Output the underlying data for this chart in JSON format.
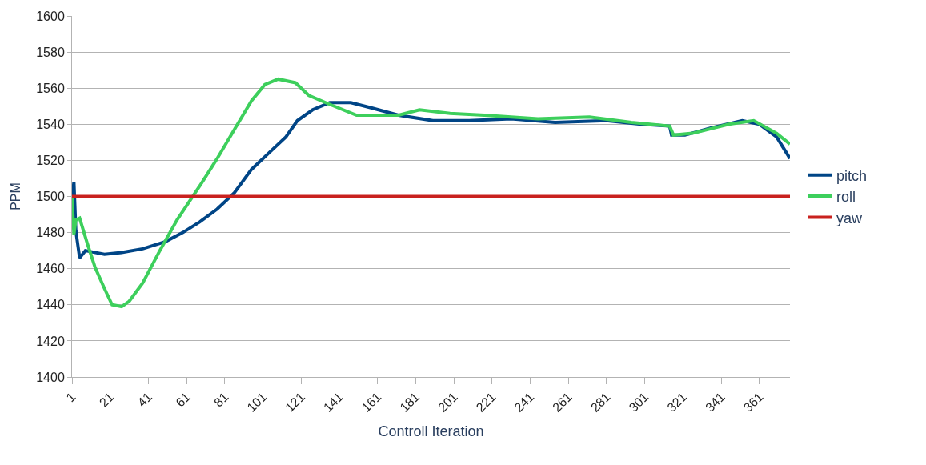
{
  "chart_data": {
    "type": "line",
    "xlabel": "Controll Iteration",
    "ylabel": "PPM",
    "xlim": [
      1,
      377
    ],
    "xticks": [
      1,
      21,
      41,
      61,
      81,
      101,
      121,
      141,
      161,
      181,
      201,
      221,
      241,
      261,
      281,
      301,
      321,
      341,
      361
    ],
    "ylim": [
      1400,
      1600
    ],
    "yticks": [
      1400,
      1420,
      1440,
      1460,
      1480,
      1500,
      1520,
      1540,
      1560,
      1580,
      1600
    ],
    "grid": "y",
    "legend": "right",
    "marker": "none",
    "line_style": "solid",
    "series": [
      {
        "name": "pitch",
        "color": "#004586",
        "x": [
          1,
          2,
          3,
          5,
          8,
          18,
          27,
          38,
          50,
          59,
          68,
          77,
          86,
          95,
          104,
          113,
          119,
          127,
          136,
          147,
          158,
          172,
          190,
          209,
          231,
          254,
          281,
          299,
          314,
          315,
          322,
          336,
          352,
          361,
          370,
          377
        ],
        "values": [
          1499,
          1508,
          1481,
          1466,
          1470,
          1468,
          1469,
          1471,
          1475,
          1480,
          1486,
          1493,
          1502,
          1515,
          1524,
          1533,
          1542,
          1548,
          1552,
          1552,
          1549,
          1545,
          1542,
          1542,
          1543,
          1541,
          1542,
          1540,
          1539,
          1534,
          1534,
          1538,
          1542,
          1540,
          1533,
          1521
        ]
      },
      {
        "name": "roll",
        "color": "#3dcf5c",
        "x": [
          1,
          2,
          3,
          5,
          9,
          13,
          18,
          22,
          27,
          31,
          38,
          47,
          56,
          68,
          77,
          86,
          95,
          102,
          109,
          118,
          125,
          136,
          150,
          172,
          183,
          199,
          217,
          245,
          272,
          294,
          314,
          316,
          326,
          345,
          358,
          370,
          377
        ],
        "values": [
          1499,
          1479,
          1487,
          1488,
          1474,
          1461,
          1449,
          1440,
          1439,
          1442,
          1452,
          1470,
          1487,
          1506,
          1521,
          1537,
          1553,
          1562,
          1565,
          1563,
          1556,
          1551,
          1545,
          1545,
          1548,
          1546,
          1545,
          1543,
          1544,
          1541,
          1539,
          1534,
          1535,
          1540,
          1542,
          1535,
          1529
        ]
      },
      {
        "name": "yaw",
        "color": "#c9211e",
        "x": [
          1,
          377
        ],
        "values": [
          1500,
          1500
        ]
      }
    ]
  }
}
